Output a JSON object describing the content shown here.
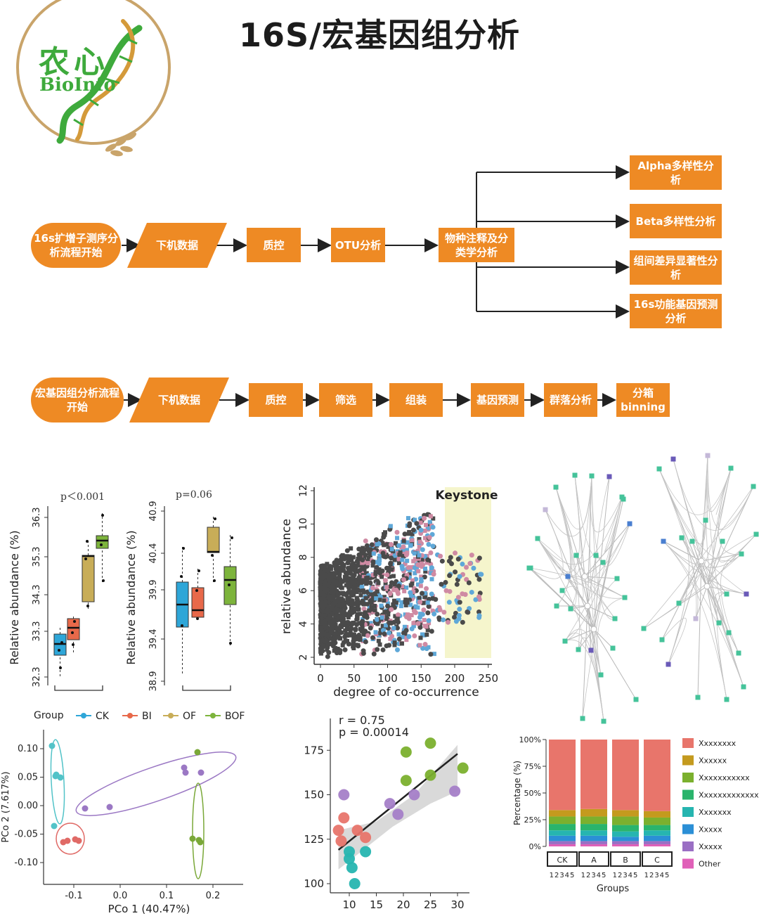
{
  "page": {
    "title": "16S/宏基因组分析"
  },
  "logo": {
    "brand_cn": "农心",
    "brand_en": "BioInfo"
  },
  "flow16s": {
    "start": "16s扩增子测序分析流程开始",
    "steps": [
      "下机数据",
      "质控",
      "OTU分析",
      "物种注释及分类学分析"
    ],
    "branches": [
      "Alpha多样性分析",
      "Beta多样性分析",
      "组间差异显著性分析",
      "16s功能基因预测分析"
    ]
  },
  "flowMeta": {
    "start": "宏基因组分析流程开始",
    "steps": [
      "下机数据",
      "质控",
      "筛选",
      "组装",
      "基因预测",
      "群落分析",
      "分箱 binning"
    ]
  },
  "colors": {
    "orange": "#ee8a24",
    "CK": "#2ea6d8",
    "BI": "#e8694a",
    "OF": "#c8ad58",
    "BOF": "#7db43c"
  },
  "boxplot": {
    "panels": [
      {
        "p": "p＜0.001",
        "ylabel": "Relative abundance (%)",
        "ticks": [
          "32.3",
          "33.3",
          "34.3",
          "35.3",
          "36.3"
        ]
      },
      {
        "p": "p=0.06",
        "ylabel": "Relative abundance (%)",
        "ticks": [
          "38.9",
          "39.4",
          "39.9",
          "40.4",
          "40.9"
        ]
      }
    ]
  },
  "scatter": {
    "keystone": "Keystone",
    "xlabel": "degree of co-occurrence",
    "ylabel": "relative abundance",
    "xticks": [
      "0",
      "50",
      "100",
      "150",
      "200",
      "250"
    ],
    "yticks": [
      "2",
      "4",
      "6",
      "8",
      "10",
      "12"
    ]
  },
  "pcoa": {
    "legend_title": "Group",
    "groups": [
      "CK",
      "BI",
      "OF",
      "BOF"
    ],
    "xlabel": "PCo 1 (40.47%)",
    "ylabel": "PCo 2 (7.617%)",
    "xticks": [
      "-0.1",
      "0.0",
      "0.1",
      "0.2"
    ],
    "yticks": [
      "0.10",
      "0.05",
      "0.00",
      "-0.05",
      "-0.10"
    ]
  },
  "corr": {
    "r": "r  = 0.75",
    "p": "p  = 0.00014",
    "xticks": [
      "10",
      "15",
      "20",
      "25",
      "30"
    ],
    "yticks": [
      "100",
      "125",
      "150",
      "175"
    ]
  },
  "stack": {
    "ylabel": "Percentage (%)",
    "yticks": [
      "100%",
      "75%",
      "50%",
      "25%",
      "0%"
    ],
    "groups": [
      "CK",
      "A",
      "B",
      "C"
    ],
    "sub": "12345",
    "xlabel": "Groups",
    "legend": [
      "Xxxxxxxx",
      "Xxxxxx",
      "Xxxxxxxxxxx",
      "Xxxxxxxxxxxxxx",
      "Xxxxxxx",
      "Xxxxx",
      "Xxxxx",
      "Other"
    ],
    "legend_colors": [
      "#e8756b",
      "#c49a1e",
      "#7bb02e",
      "#2ab46c",
      "#26b5b0",
      "#2b8fd6",
      "#9a6fc4",
      "#e060b8"
    ]
  }
}
